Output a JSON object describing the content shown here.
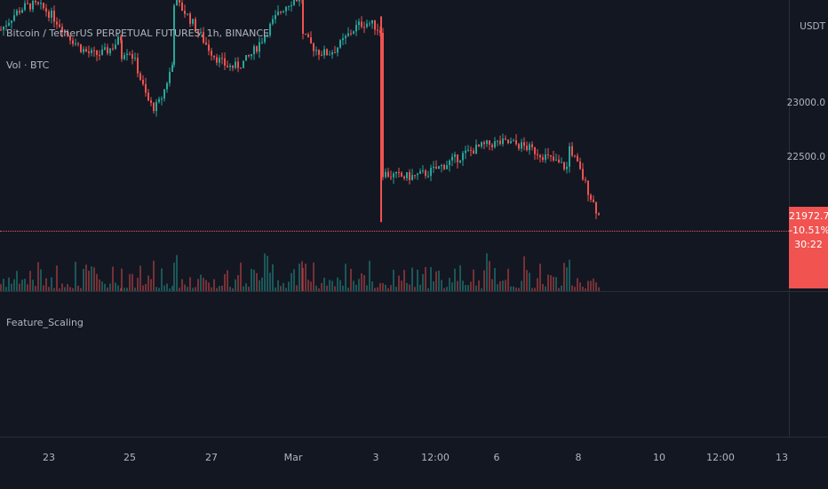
{
  "legend": {
    "symbol": "Bitcoin / TetherUS PERPETUAL FUTURES, 1h, BINANCE",
    "volume": "Vol · BTC",
    "indicator": "Feature_Scaling"
  },
  "price_axis": {
    "currency": "USDT",
    "ticks": [
      "23000.0",
      "22500.0"
    ]
  },
  "price_badge": {
    "price": "21972.7",
    "change": "-10.51%",
    "countdown": "30:22",
    "color": "#f05350"
  },
  "time_axis": {
    "ticks": [
      "23",
      "25",
      "27",
      "Mar",
      "3",
      "12:00",
      "6",
      "8",
      "10",
      "12:00",
      "13"
    ]
  },
  "colors": {
    "background": "#131722",
    "up": "#26a69a",
    "down": "#ef5350",
    "grid": "#2a2e39"
  },
  "chart_data": {
    "type": "candlestick",
    "timeframe": "1h",
    "y_ticks": [
      23000,
      22500
    ],
    "last_price": 21972.7,
    "segments": [
      {
        "from": "Feb 22",
        "to": "Feb 24",
        "approx_low": 23350,
        "approx_high": 24000
      },
      {
        "from": "Feb 24",
        "to": "Feb 26",
        "approx_low": 22850,
        "approx_high": 23600
      },
      {
        "from": "Feb 26",
        "to": "Mar 2",
        "approx_low": 23200,
        "approx_high": 24100
      },
      {
        "from": "Mar 2",
        "to": "Mar 3",
        "approx_low": 23400,
        "approx_high": 23800
      },
      {
        "from": "Mar 3",
        "to": "Mar 7",
        "approx_low": 22250,
        "approx_high": 22700
      },
      {
        "from": "Mar 7",
        "to": "Mar 8",
        "approx_low": 21900,
        "approx_high": 22600
      }
    ]
  }
}
